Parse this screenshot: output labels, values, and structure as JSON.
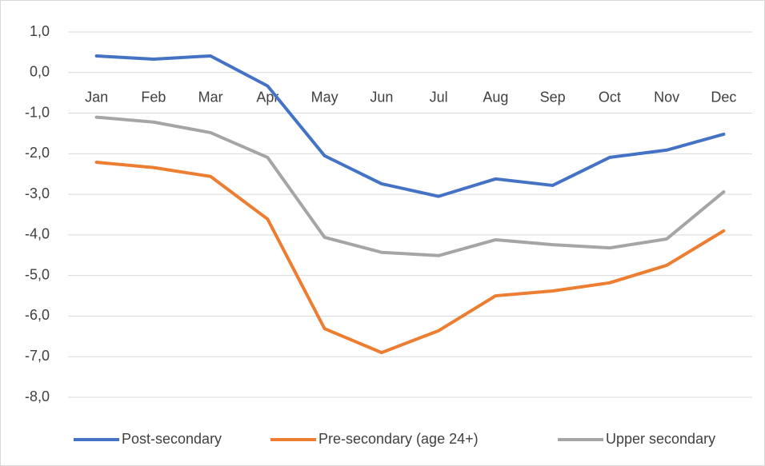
{
  "chart_data": {
    "type": "line",
    "categories": [
      "Jan",
      "Feb",
      "Mar",
      "Apr",
      "May",
      "Jun",
      "Jul",
      "Aug",
      "Sep",
      "Oct",
      "Nov",
      "Dec"
    ],
    "series": [
      {
        "name": "Post-secondary",
        "color": "#4472c4",
        "values": [
          0.41,
          0.33,
          0.41,
          -0.33,
          -2.05,
          -2.74,
          -3.05,
          -2.62,
          -2.78,
          -2.09,
          -1.91,
          -1.52
        ]
      },
      {
        "name": "Pre-secondary (age 24+)",
        "color": "#ed7d31",
        "values": [
          -2.21,
          -2.34,
          -2.56,
          -3.61,
          -6.31,
          -6.9,
          -6.36,
          -5.5,
          -5.38,
          -5.18,
          -4.75,
          -3.9
        ]
      },
      {
        "name": "Upper secondary",
        "color": "#a5a5a5",
        "values": [
          -1.1,
          -1.22,
          -1.48,
          -2.09,
          -4.06,
          -4.43,
          -4.51,
          -4.12,
          -4.24,
          -4.32,
          -4.1,
          -2.94
        ]
      }
    ],
    "ylim": [
      -8,
      1
    ],
    "yticks": [
      {
        "value": 1,
        "label": "1,0"
      },
      {
        "value": 0,
        "label": "0,0"
      },
      {
        "value": -1,
        "label": "-1,0"
      },
      {
        "value": -2,
        "label": "-2,0"
      },
      {
        "value": -3,
        "label": "-3,0"
      },
      {
        "value": -4,
        "label": "-4,0"
      },
      {
        "value": -5,
        "label": "-5,0"
      },
      {
        "value": -6,
        "label": "-6,0"
      },
      {
        "value": -7,
        "label": "-7,0"
      },
      {
        "value": -8,
        "label": "-8,0"
      }
    ],
    "grid": true,
    "legend": "bottom"
  }
}
